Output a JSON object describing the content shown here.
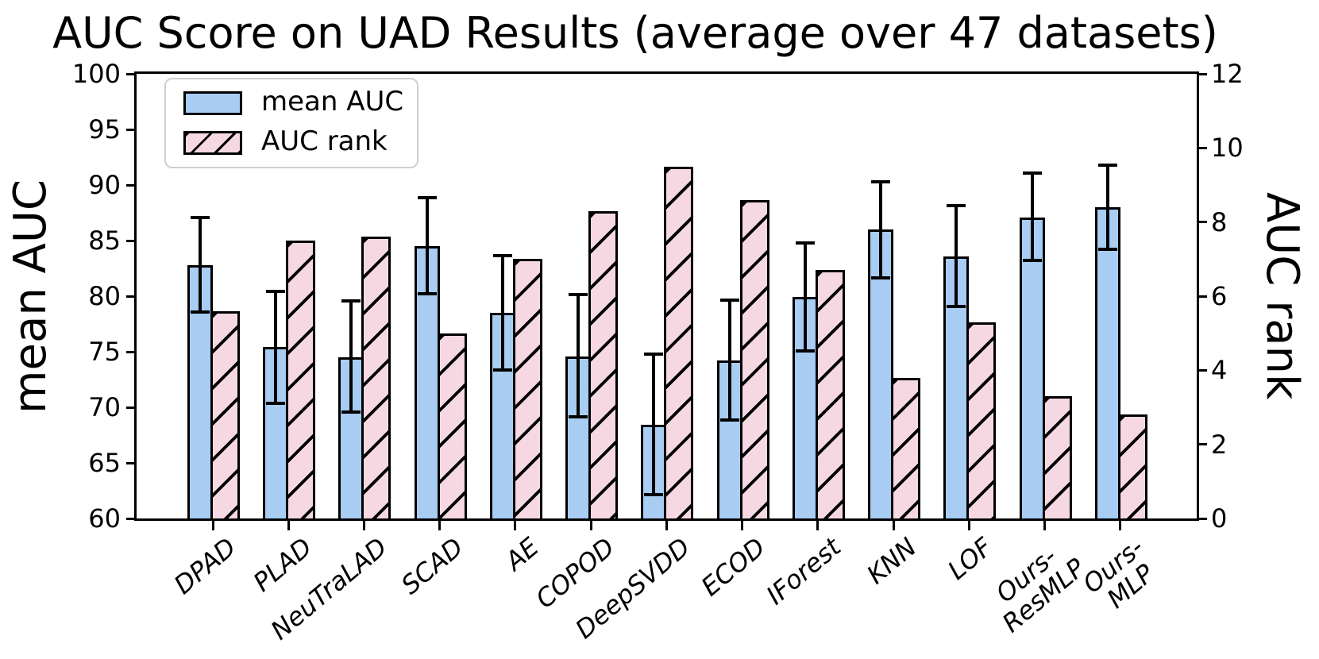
{
  "chart_data": {
    "type": "bar",
    "title": "AUC Score on UAD Results (average over 47 datasets)",
    "categories": [
      "DPAD",
      "PLAD",
      "NeuTraLAD",
      "SCAD",
      "AE",
      "COPOD",
      "DeepSVDD",
      "ECOD",
      "IForest",
      "KNN",
      "LOF",
      "Ours-\nResMLP",
      "Ours-\nMLP"
    ],
    "series": [
      {
        "name": "mean AUC",
        "axis": "left",
        "type": "bar",
        "color": "#a8ccf2",
        "edge_color": "#000000",
        "values": [
          82.8,
          75.4,
          74.5,
          84.5,
          78.5,
          74.6,
          68.4,
          74.2,
          79.9,
          86.0,
          83.6,
          87.1,
          88.0
        ],
        "err_upper": [
          87.2,
          80.6,
          79.7,
          89.0,
          83.8,
          80.3,
          74.9,
          79.8,
          84.9,
          90.4,
          88.3,
          91.2,
          91.9
        ],
        "err_lower": [
          78.4,
          70.2,
          69.4,
          80.1,
          73.2,
          69.0,
          62.0,
          68.7,
          74.9,
          81.5,
          78.9,
          83.1,
          84.1
        ]
      },
      {
        "name": "AUC rank",
        "axis": "right",
        "type": "bar",
        "color": "#f6d8e2",
        "edge_color": "#000000",
        "hatch": "/",
        "values": [
          5.6,
          7.5,
          7.6,
          5.0,
          7.0,
          8.3,
          9.5,
          8.6,
          6.7,
          3.8,
          5.3,
          3.3,
          2.8
        ]
      }
    ],
    "left_axis": {
      "label": "mean AUC",
      "min": 60,
      "max": 100,
      "ticks": [
        100,
        95,
        90,
        85,
        80,
        75,
        70,
        65,
        60
      ]
    },
    "right_axis": {
      "label": "AUC rank",
      "min": 0,
      "max": 12,
      "ticks": [
        12,
        10,
        8,
        6,
        4,
        2,
        0
      ]
    },
    "legend": {
      "position": "upper left",
      "entries": [
        "mean AUC",
        "AUC rank"
      ]
    },
    "grid": false,
    "xtick_rotation_deg": 40,
    "xtick_style": "italic"
  }
}
